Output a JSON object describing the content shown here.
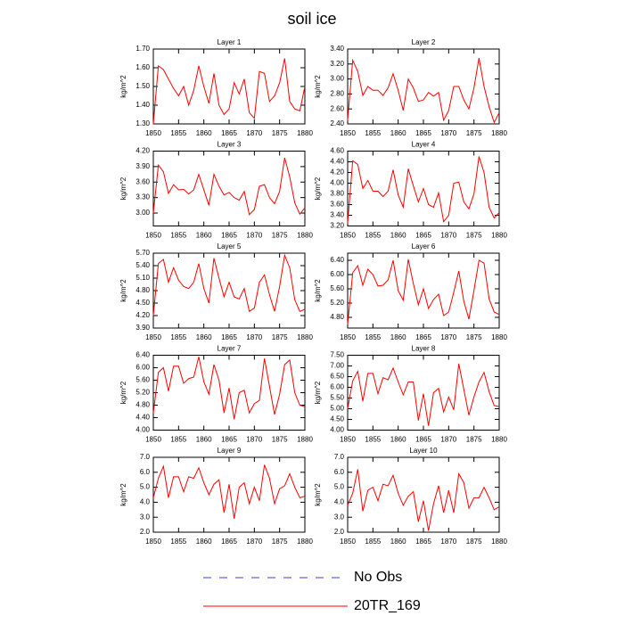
{
  "title": "soil ice",
  "legend": [
    {
      "name": "No Obs",
      "color": "#4040c0",
      "linestyle": "dashed"
    },
    {
      "name": "20TR_169",
      "color": "#ff0000",
      "linestyle": "solid"
    }
  ],
  "chart_data": [
    {
      "type": "line",
      "title": "Layer 1",
      "ylabel": "kg/m^2",
      "xlim": [
        1850,
        1880
      ],
      "xticks": [
        1850,
        1855,
        1860,
        1865,
        1870,
        1875,
        1880
      ],
      "ylim": [
        1.3,
        1.7
      ],
      "yticks": [
        {
          "value": 1.3,
          "label": "1.30"
        },
        {
          "value": 1.4,
          "label": "1.40"
        },
        {
          "value": 1.5,
          "label": "1.50"
        },
        {
          "value": 1.6,
          "label": "1.60"
        },
        {
          "value": 1.7,
          "label": "1.70"
        }
      ],
      "x": [
        1850,
        1851,
        1852,
        1853,
        1854,
        1855,
        1856,
        1857,
        1858,
        1859,
        1860,
        1861,
        1862,
        1863,
        1864,
        1865,
        1866,
        1867,
        1868,
        1869,
        1870,
        1871,
        1872,
        1873,
        1874,
        1875,
        1876,
        1877,
        1878,
        1879,
        1880
      ],
      "series": [
        {
          "color": "#ff0000",
          "values": [
            1.3,
            1.61,
            1.59,
            1.54,
            1.49,
            1.45,
            1.5,
            1.4,
            1.48,
            1.61,
            1.5,
            1.41,
            1.57,
            1.4,
            1.35,
            1.38,
            1.52,
            1.46,
            1.54,
            1.36,
            1.33,
            1.58,
            1.57,
            1.42,
            1.45,
            1.52,
            1.65,
            1.42,
            1.38,
            1.37,
            1.5
          ]
        }
      ]
    },
    {
      "type": "line",
      "title": "Layer 2",
      "ylabel": "kg/m^2",
      "xlim": [
        1850,
        1880
      ],
      "xticks": [
        1850,
        1855,
        1860,
        1865,
        1870,
        1875,
        1880
      ],
      "ylim": [
        2.4,
        3.4
      ],
      "yticks": [
        {
          "value": 2.4,
          "label": "2.40"
        },
        {
          "value": 2.6,
          "label": "2.60"
        },
        {
          "value": 2.8,
          "label": "2.80"
        },
        {
          "value": 3.0,
          "label": "3.00"
        },
        {
          "value": 3.2,
          "label": "3.20"
        },
        {
          "value": 3.4,
          "label": "3.40"
        }
      ],
      "x": [
        1850,
        1851,
        1852,
        1853,
        1854,
        1855,
        1856,
        1857,
        1858,
        1859,
        1860,
        1861,
        1862,
        1863,
        1864,
        1865,
        1866,
        1867,
        1868,
        1869,
        1870,
        1871,
        1872,
        1873,
        1874,
        1875,
        1876,
        1877,
        1878,
        1879,
        1880
      ],
      "series": [
        {
          "color": "#ff0000",
          "values": [
            2.45,
            3.25,
            3.1,
            2.78,
            2.9,
            2.85,
            2.85,
            2.78,
            2.88,
            3.07,
            2.85,
            2.58,
            3.0,
            2.88,
            2.7,
            2.72,
            2.82,
            2.77,
            2.82,
            2.45,
            2.58,
            2.9,
            2.9,
            2.72,
            2.6,
            2.88,
            3.28,
            2.9,
            2.63,
            2.42,
            2.55
          ]
        }
      ]
    },
    {
      "type": "line",
      "title": "Layer 3",
      "ylabel": "kg/m^2",
      "xlim": [
        1850,
        1880
      ],
      "xticks": [
        1850,
        1855,
        1860,
        1865,
        1870,
        1875,
        1880
      ],
      "ylim": [
        2.75,
        4.2
      ],
      "yticks": [
        {
          "value": 3.0,
          "label": "3.00"
        },
        {
          "value": 3.3,
          "label": "3.30"
        },
        {
          "value": 3.6,
          "label": "3.60"
        },
        {
          "value": 3.9,
          "label": "3.90"
        },
        {
          "value": 4.2,
          "label": "4.20"
        }
      ],
      "x": [
        1850,
        1851,
        1852,
        1853,
        1854,
        1855,
        1856,
        1857,
        1858,
        1859,
        1860,
        1861,
        1862,
        1863,
        1864,
        1865,
        1866,
        1867,
        1868,
        1869,
        1870,
        1871,
        1872,
        1873,
        1874,
        1875,
        1876,
        1877,
        1878,
        1879,
        1880
      ],
      "series": [
        {
          "color": "#ff0000",
          "values": [
            3.0,
            3.93,
            3.8,
            3.38,
            3.55,
            3.45,
            3.46,
            3.37,
            3.45,
            3.75,
            3.45,
            3.15,
            3.75,
            3.52,
            3.35,
            3.4,
            3.3,
            3.25,
            3.42,
            2.97,
            3.07,
            3.52,
            3.55,
            3.3,
            3.18,
            3.42,
            4.07,
            3.7,
            3.2,
            2.98,
            3.1
          ]
        }
      ]
    },
    {
      "type": "line",
      "title": "Layer 4",
      "ylabel": "kg/m^2",
      "xlim": [
        1850,
        1880
      ],
      "xticks": [
        1850,
        1855,
        1860,
        1865,
        1870,
        1875,
        1880
      ],
      "ylim": [
        3.2,
        4.6
      ],
      "yticks": [
        {
          "value": 3.2,
          "label": "3.20"
        },
        {
          "value": 3.4,
          "label": "3.40"
        },
        {
          "value": 3.6,
          "label": "3.60"
        },
        {
          "value": 3.8,
          "label": "3.80"
        },
        {
          "value": 4.0,
          "label": "4.00"
        },
        {
          "value": 4.2,
          "label": "4.20"
        },
        {
          "value": 4.4,
          "label": "4.40"
        },
        {
          "value": 4.6,
          "label": "4.60"
        }
      ],
      "x": [
        1850,
        1851,
        1852,
        1853,
        1854,
        1855,
        1856,
        1857,
        1858,
        1859,
        1860,
        1861,
        1862,
        1863,
        1864,
        1865,
        1866,
        1867,
        1868,
        1869,
        1870,
        1871,
        1872,
        1873,
        1874,
        1875,
        1876,
        1877,
        1878,
        1879,
        1880
      ],
      "series": [
        {
          "color": "#ff0000",
          "values": [
            3.25,
            4.42,
            4.35,
            3.9,
            4.05,
            3.85,
            3.85,
            3.75,
            3.85,
            4.25,
            3.78,
            3.55,
            4.27,
            3.95,
            3.65,
            3.9,
            3.6,
            3.55,
            3.82,
            3.28,
            3.4,
            4.0,
            4.02,
            3.65,
            3.52,
            3.8,
            4.5,
            4.2,
            3.55,
            3.35,
            3.45
          ]
        }
      ]
    },
    {
      "type": "line",
      "title": "Layer 5",
      "ylabel": "kg/m^2",
      "xlim": [
        1850,
        1880
      ],
      "xticks": [
        1850,
        1855,
        1860,
        1865,
        1870,
        1875,
        1880
      ],
      "ylim": [
        3.9,
        5.7
      ],
      "yticks": [
        {
          "value": 3.9,
          "label": "3.90"
        },
        {
          "value": 4.2,
          "label": "4.20"
        },
        {
          "value": 4.5,
          "label": "4.50"
        },
        {
          "value": 4.8,
          "label": "4.80"
        },
        {
          "value": 5.1,
          "label": "5.10"
        },
        {
          "value": 5.4,
          "label": "5.40"
        },
        {
          "value": 5.7,
          "label": "5.70"
        }
      ],
      "x": [
        1850,
        1851,
        1852,
        1853,
        1854,
        1855,
        1856,
        1857,
        1858,
        1859,
        1860,
        1861,
        1862,
        1863,
        1864,
        1865,
        1866,
        1867,
        1868,
        1869,
        1870,
        1871,
        1872,
        1873,
        1874,
        1875,
        1876,
        1877,
        1878,
        1879,
        1880
      ],
      "series": [
        {
          "color": "#ff0000",
          "values": [
            4.2,
            5.45,
            5.55,
            5.0,
            5.35,
            5.05,
            4.9,
            4.85,
            5.0,
            5.45,
            4.85,
            4.5,
            5.58,
            5.1,
            4.65,
            5.0,
            4.65,
            4.6,
            4.85,
            4.3,
            4.38,
            5.0,
            5.18,
            4.7,
            4.3,
            4.9,
            5.65,
            5.35,
            4.58,
            4.3,
            4.35
          ]
        }
      ]
    },
    {
      "type": "line",
      "title": "Layer 6",
      "ylabel": "kg/m^2",
      "xlim": [
        1850,
        1880
      ],
      "xticks": [
        1850,
        1855,
        1860,
        1865,
        1870,
        1875,
        1880
      ],
      "ylim": [
        4.5,
        6.6
      ],
      "yticks": [
        {
          "value": 4.8,
          "label": "4.80"
        },
        {
          "value": 5.2,
          "label": "5.20"
        },
        {
          "value": 5.6,
          "label": "5.60"
        },
        {
          "value": 6.0,
          "label": "6.00"
        },
        {
          "value": 6.4,
          "label": "6.40"
        }
      ],
      "x": [
        1850,
        1851,
        1852,
        1853,
        1854,
        1855,
        1856,
        1857,
        1858,
        1859,
        1860,
        1861,
        1862,
        1863,
        1864,
        1865,
        1866,
        1867,
        1868,
        1869,
        1870,
        1871,
        1872,
        1873,
        1874,
        1875,
        1876,
        1877,
        1878,
        1879,
        1880
      ],
      "series": [
        {
          "color": "#ff0000",
          "values": [
            4.6,
            6.05,
            6.25,
            5.7,
            6.15,
            6.0,
            5.68,
            5.7,
            5.85,
            6.4,
            5.55,
            5.28,
            6.43,
            5.75,
            5.15,
            5.6,
            5.05,
            5.3,
            5.45,
            4.85,
            4.95,
            5.5,
            6.1,
            5.25,
            4.75,
            5.55,
            6.4,
            6.32,
            5.32,
            4.95,
            4.88
          ]
        }
      ]
    },
    {
      "type": "line",
      "title": "Layer 7",
      "ylabel": "kg/m^2",
      "xlim": [
        1850,
        1880
      ],
      "xticks": [
        1850,
        1855,
        1860,
        1865,
        1870,
        1875,
        1880
      ],
      "ylim": [
        4.0,
        6.4
      ],
      "yticks": [
        {
          "value": 4.0,
          "label": "4.00"
        },
        {
          "value": 4.4,
          "label": "4.40"
        },
        {
          "value": 4.8,
          "label": "4.80"
        },
        {
          "value": 5.2,
          "label": "5.20"
        },
        {
          "value": 5.6,
          "label": "5.60"
        },
        {
          "value": 6.0,
          "label": "6.00"
        },
        {
          "value": 6.4,
          "label": "6.40"
        }
      ],
      "x": [
        1850,
        1851,
        1852,
        1853,
        1854,
        1855,
        1856,
        1857,
        1858,
        1859,
        1860,
        1861,
        1862,
        1863,
        1864,
        1865,
        1866,
        1867,
        1868,
        1869,
        1870,
        1871,
        1872,
        1873,
        1874,
        1875,
        1876,
        1877,
        1878,
        1879,
        1880
      ],
      "series": [
        {
          "color": "#ff0000",
          "values": [
            4.55,
            5.85,
            6.0,
            5.25,
            6.05,
            6.05,
            5.5,
            5.65,
            5.7,
            6.35,
            5.55,
            5.15,
            6.1,
            5.6,
            4.55,
            5.35,
            4.35,
            5.2,
            5.28,
            4.55,
            4.85,
            4.95,
            6.3,
            5.4,
            4.5,
            5.15,
            6.1,
            6.25,
            5.2,
            4.8,
            4.75
          ]
        }
      ]
    },
    {
      "type": "line",
      "title": "Layer 8",
      "ylabel": "kg/m^2",
      "xlim": [
        1850,
        1880
      ],
      "xticks": [
        1850,
        1855,
        1860,
        1865,
        1870,
        1875,
        1880
      ],
      "ylim": [
        4.0,
        7.5
      ],
      "yticks": [
        {
          "value": 4.0,
          "label": "4.00"
        },
        {
          "value": 4.5,
          "label": "4.50"
        },
        {
          "value": 5.0,
          "label": "5.00"
        },
        {
          "value": 5.5,
          "label": "5.50"
        },
        {
          "value": 6.0,
          "label": "6.00"
        },
        {
          "value": 6.5,
          "label": "6.50"
        },
        {
          "value": 7.0,
          "label": "7.00"
        },
        {
          "value": 7.5,
          "label": "7.50"
        }
      ],
      "x": [
        1850,
        1851,
        1852,
        1853,
        1854,
        1855,
        1856,
        1857,
        1858,
        1859,
        1860,
        1861,
        1862,
        1863,
        1864,
        1865,
        1866,
        1867,
        1868,
        1869,
        1870,
        1871,
        1872,
        1873,
        1874,
        1875,
        1876,
        1877,
        1878,
        1879,
        1880
      ],
      "series": [
        {
          "color": "#ff0000",
          "values": [
            5.0,
            6.3,
            6.75,
            5.35,
            6.65,
            6.65,
            5.7,
            6.45,
            6.35,
            6.9,
            6.25,
            5.65,
            6.25,
            6.25,
            4.45,
            5.7,
            4.2,
            5.75,
            5.95,
            4.85,
            5.55,
            4.95,
            7.1,
            5.9,
            4.7,
            5.55,
            6.25,
            6.7,
            5.8,
            5.15,
            5.1
          ]
        }
      ]
    },
    {
      "type": "line",
      "title": "Layer 9",
      "ylabel": "kg/m^2",
      "xlim": [
        1850,
        1880
      ],
      "xticks": [
        1850,
        1855,
        1860,
        1865,
        1870,
        1875,
        1880
      ],
      "ylim": [
        2.0,
        7.0
      ],
      "yticks": [
        {
          "value": 2.0,
          "label": "2.0"
        },
        {
          "value": 3.0,
          "label": "3.0"
        },
        {
          "value": 4.0,
          "label": "4.0"
        },
        {
          "value": 5.0,
          "label": "5.0"
        },
        {
          "value": 6.0,
          "label": "6.0"
        },
        {
          "value": 7.0,
          "label": "7.0"
        }
      ],
      "x": [
        1850,
        1851,
        1852,
        1853,
        1854,
        1855,
        1856,
        1857,
        1858,
        1859,
        1860,
        1861,
        1862,
        1863,
        1864,
        1865,
        1866,
        1867,
        1868,
        1869,
        1870,
        1871,
        1872,
        1873,
        1874,
        1875,
        1876,
        1877,
        1878,
        1879,
        1880
      ],
      "series": [
        {
          "color": "#ff0000",
          "values": [
            4.3,
            5.6,
            6.4,
            4.3,
            5.7,
            5.7,
            4.7,
            5.7,
            5.6,
            6.3,
            5.3,
            4.5,
            5.2,
            5.5,
            3.3,
            5.2,
            2.9,
            5.0,
            5.3,
            3.9,
            5.0,
            4.1,
            6.5,
            5.6,
            3.9,
            4.9,
            5.1,
            5.9,
            5.0,
            4.3,
            4.4
          ]
        }
      ]
    },
    {
      "type": "line",
      "title": "Layer 10",
      "ylabel": "kg/m^2",
      "xlim": [
        1850,
        1880
      ],
      "xticks": [
        1850,
        1855,
        1860,
        1865,
        1870,
        1875,
        1880
      ],
      "ylim": [
        2.0,
        7.0
      ],
      "yticks": [
        {
          "value": 2.0,
          "label": "2.0"
        },
        {
          "value": 3.0,
          "label": "3.0"
        },
        {
          "value": 4.0,
          "label": "4.0"
        },
        {
          "value": 5.0,
          "label": "5.0"
        },
        {
          "value": 6.0,
          "label": "6.0"
        },
        {
          "value": 7.0,
          "label": "7.0"
        }
      ],
      "x": [
        1850,
        1851,
        1852,
        1853,
        1854,
        1855,
        1856,
        1857,
        1858,
        1859,
        1860,
        1861,
        1862,
        1863,
        1864,
        1865,
        1866,
        1867,
        1868,
        1869,
        1870,
        1871,
        1872,
        1873,
        1874,
        1875,
        1876,
        1877,
        1878,
        1879,
        1880
      ],
      "series": [
        {
          "color": "#ff0000",
          "values": [
            3.8,
            4.6,
            6.2,
            3.4,
            4.8,
            5.0,
            4.1,
            5.2,
            5.1,
            5.8,
            4.6,
            3.8,
            4.4,
            4.7,
            2.7,
            4.1,
            2.1,
            3.9,
            5.1,
            3.3,
            4.8,
            3.3,
            5.9,
            5.3,
            3.6,
            4.3,
            4.3,
            5.0,
            4.3,
            3.5,
            3.7
          ]
        }
      ]
    }
  ]
}
